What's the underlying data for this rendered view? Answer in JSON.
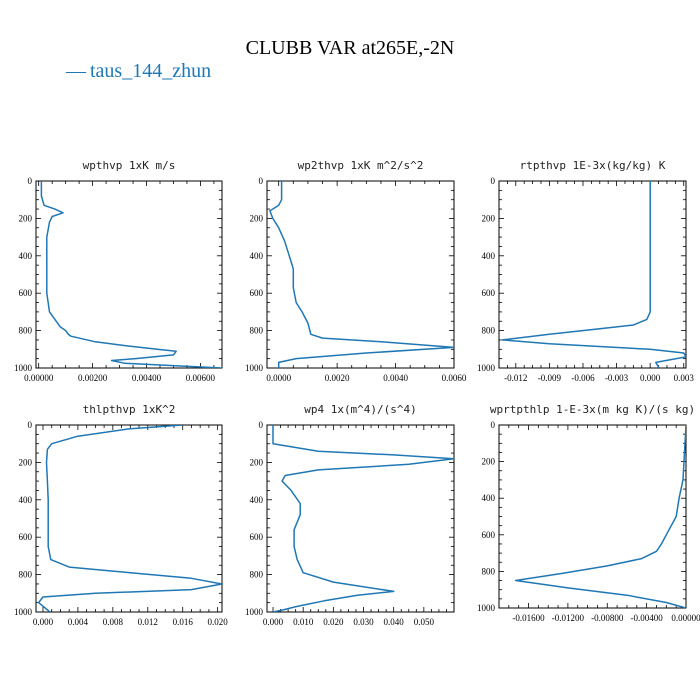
{
  "title": "CLUBB VAR at265E,-2N",
  "legend": {
    "label": "taus_144_zhun",
    "line_symbol": "—"
  },
  "colors": {
    "series": "#1f77b4"
  },
  "chart_data": [
    {
      "type": "line",
      "title": "wpthvp  1xK m/s",
      "xlim": [
        -0.0001,
        0.0068
      ],
      "ylim": [
        1000,
        0
      ],
      "xticks": [
        "0.00000",
        "0.00200",
        "0.00400",
        "0.00600"
      ],
      "xtick_values": [
        0,
        0.002,
        0.004,
        0.006
      ],
      "yticks": [
        "0",
        "200",
        "400",
        "600",
        "800",
        "1000"
      ],
      "yticks_values": [
        0,
        200,
        400,
        600,
        800,
        1000
      ],
      "series": [
        {
          "x": [
            0.0001,
            0.0001,
            0.0002,
            0.0006,
            0.0009,
            0.0005,
            0.0004,
            0.0003,
            0.0003,
            0.0003,
            0.0003,
            0.0004,
            0.0008,
            0.001,
            0.0011,
            0.0012,
            0.0021,
            0.0032,
            0.0044,
            0.0051,
            0.005,
            0.0036,
            0.0027,
            0.0032,
            0.0068
          ],
          "y": [
            0,
            80,
            130,
            150,
            170,
            190,
            220,
            300,
            400,
            500,
            600,
            700,
            780,
            800,
            820,
            830,
            860,
            880,
            900,
            910,
            930,
            950,
            960,
            975,
            1000
          ]
        }
      ]
    },
    {
      "type": "line",
      "title": "wp2thvp  1xK m^2/s^2",
      "xlim": [
        -0.0004,
        0.006
      ],
      "ylim": [
        1000,
        0
      ],
      "xticks": [
        "0.0000",
        "0.0020",
        "0.0040",
        "0.0060"
      ],
      "xtick_values": [
        0,
        0.002,
        0.004,
        0.006
      ],
      "yticks": [
        "0",
        "200",
        "400",
        "600",
        "800",
        "1000"
      ],
      "yticks_values": [
        0,
        200,
        400,
        600,
        800,
        1000
      ],
      "series": [
        {
          "x": [
            0.0001,
            0.0001,
            0.0,
            -0.0003,
            -0.0002,
            0.0,
            0.0002,
            0.0003,
            0.0004,
            0.0005,
            0.0005,
            0.0005,
            0.0006,
            0.0008,
            0.001,
            0.0011,
            0.0015,
            0.0035,
            0.006,
            0.003,
            0.0006,
            0.0,
            0.0
          ],
          "y": [
            0,
            100,
            130,
            160,
            200,
            250,
            320,
            370,
            420,
            470,
            520,
            570,
            650,
            700,
            760,
            820,
            840,
            860,
            890,
            920,
            950,
            970,
            1000
          ]
        }
      ]
    },
    {
      "type": "line",
      "title": "rtpthvp  1E-3x(kg/kg) K",
      "xlim": [
        -0.0135,
        0.0032
      ],
      "ylim": [
        1000,
        0
      ],
      "xticks": [
        "-0.012",
        "-0.009",
        "-0.006",
        "-0.003",
        "0.000",
        "0.003"
      ],
      "xtick_values": [
        -0.012,
        -0.009,
        -0.006,
        -0.003,
        0,
        0.003
      ],
      "yticks": [
        "0",
        "200",
        "400",
        "600",
        "800",
        "1000"
      ],
      "yticks_values": [
        0,
        200,
        400,
        600,
        800,
        1000
      ],
      "series": [
        {
          "x": [
            0.0,
            0.0,
            0.0,
            0.0,
            -0.0003,
            -0.0015,
            -0.0045,
            -0.009,
            -0.0132,
            -0.009,
            0.0,
            0.003,
            0.0032,
            0.0005,
            0.0008
          ],
          "y": [
            0,
            300,
            600,
            700,
            740,
            770,
            790,
            820,
            850,
            870,
            900,
            920,
            940,
            970,
            1000
          ]
        }
      ]
    },
    {
      "type": "line",
      "title": "thlpthvp  1xK^2",
      "xlim": [
        -0.0008,
        0.0205
      ],
      "ylim": [
        1000,
        0
      ],
      "xticks": [
        "0.000",
        "0.004",
        "0.008",
        "0.012",
        "0.016",
        "0.020"
      ],
      "xtick_values": [
        0,
        0.004,
        0.008,
        0.012,
        0.016,
        0.02
      ],
      "yticks": [
        "0",
        "200",
        "400",
        "600",
        "800",
        "1000"
      ],
      "yticks_values": [
        0,
        200,
        400,
        600,
        800,
        1000
      ],
      "series": [
        {
          "x": [
            0.016,
            0.01,
            0.004,
            0.001,
            0.0005,
            0.0004,
            0.0005,
            0.0006,
            0.0006,
            0.0006,
            0.0009,
            0.003,
            0.01,
            0.017,
            0.0205,
            0.017,
            0.006,
            0.0,
            -0.0005,
            0.0008
          ],
          "y": [
            0,
            20,
            60,
            100,
            130,
            200,
            300,
            400,
            500,
            650,
            720,
            760,
            790,
            820,
            850,
            880,
            900,
            920,
            950,
            1000
          ]
        }
      ]
    },
    {
      "type": "line",
      "title": "wp4  1x(m^4)/(s^4)",
      "xlim": [
        -0.002,
        0.06
      ],
      "ylim": [
        1000,
        0
      ],
      "xticks": [
        "0.000",
        "0.010",
        "0.020",
        "0.030",
        "0.040",
        "0.050"
      ],
      "xtick_values": [
        0,
        0.01,
        0.02,
        0.03,
        0.04,
        0.05
      ],
      "yticks": [
        "0",
        "200",
        "400",
        "600",
        "800",
        "1000"
      ],
      "yticks_values": [
        0,
        200,
        400,
        600,
        800,
        1000
      ],
      "series": [
        {
          "x": [
            0.0,
            0.0,
            0.015,
            0.04,
            0.06,
            0.045,
            0.015,
            0.004,
            0.003,
            0.006,
            0.009,
            0.009,
            0.007,
            0.007,
            0.008,
            0.01,
            0.02,
            0.04,
            0.028,
            0.017,
            0.008,
            0.003,
            0.0
          ],
          "y": [
            0,
            100,
            140,
            160,
            180,
            210,
            240,
            270,
            300,
            350,
            420,
            480,
            560,
            650,
            720,
            790,
            840,
            890,
            910,
            940,
            970,
            990,
            1000
          ]
        }
      ]
    },
    {
      "type": "line",
      "title": "wprtpthlp  1-E-3x(m kg K)/(s kg)",
      "xlim": [
        -0.019,
        0.0
      ],
      "ylim": [
        1000,
        0
      ],
      "xticks": [
        "-0.01600",
        "-0.01200",
        "-0.00800",
        "-0.00400",
        "0.00000"
      ],
      "xtick_values": [
        -0.016,
        -0.012,
        -0.008,
        -0.004,
        0
      ],
      "yticks": [
        "0",
        "200",
        "400",
        "600",
        "800",
        "1000"
      ],
      "yticks_values": [
        0,
        200,
        400,
        600,
        800,
        1000
      ],
      "series": [
        {
          "x": [
            0.0,
            -0.0003,
            -0.0007,
            -0.001,
            -0.002,
            -0.0025,
            -0.003,
            -0.0045,
            -0.008,
            -0.0125,
            -0.0173,
            -0.012,
            -0.006,
            -0.002,
            0.0
          ],
          "y": [
            0,
            300,
            400,
            500,
            600,
            650,
            690,
            730,
            770,
            810,
            850,
            890,
            930,
            970,
            1000
          ]
        }
      ]
    }
  ]
}
